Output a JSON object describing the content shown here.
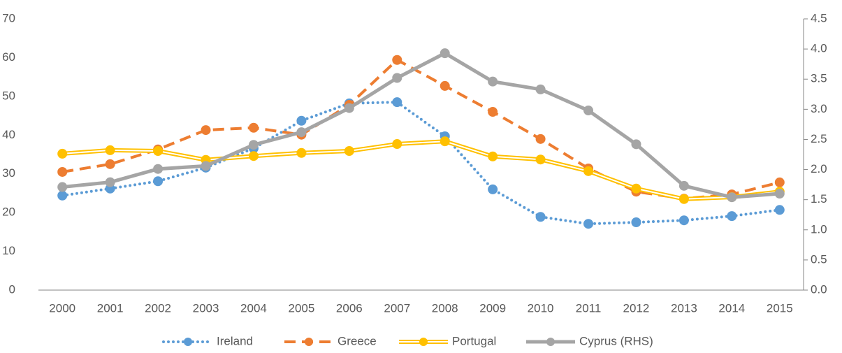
{
  "chart_data": {
    "type": "line",
    "categories": [
      "2000",
      "2001",
      "2002",
      "2003",
      "2004",
      "2005",
      "2006",
      "2007",
      "2008",
      "2009",
      "2010",
      "2011",
      "2012",
      "2013",
      "2014",
      "2015"
    ],
    "series": [
      {
        "name": "Ireland",
        "color": "#5b9bd5",
        "style": "dotted",
        "values": [
          24.4,
          26.2,
          28.1,
          31.6,
          36.6,
          43.7,
          48.2,
          48.5,
          39.7,
          26.0,
          18.9,
          17.1,
          17.5,
          18.0,
          19.1,
          20.7
        ]
      },
      {
        "name": "Greece",
        "color": "#ed7d31",
        "style": "dashed",
        "values": [
          30.5,
          32.5,
          36.3,
          41.3,
          41.9,
          40.1,
          47.8,
          59.4,
          52.7,
          46.0,
          39.0,
          31.4,
          25.4,
          23.6,
          24.7,
          27.8
        ]
      },
      {
        "name": "Portugal",
        "color": "#ffc000",
        "style": "double",
        "values": [
          35.2,
          36.1,
          35.9,
          33.6,
          34.6,
          35.4,
          35.9,
          37.7,
          38.4,
          34.5,
          33.7,
          30.7,
          26.2,
          23.5,
          24.0,
          25.4
        ]
      },
      {
        "name": "Cyprus (RHS)",
        "color": "#a5a5a5",
        "style": "solid",
        "axis": "y2",
        "values": [
          1.71,
          1.79,
          2.01,
          2.06,
          2.41,
          2.62,
          3.02,
          3.52,
          3.93,
          3.46,
          3.33,
          2.98,
          2.42,
          1.73,
          1.54,
          1.6
        ]
      }
    ],
    "ylim": [
      0,
      70
    ],
    "yticks": [
      0,
      10,
      20,
      30,
      40,
      50,
      60,
      70
    ],
    "y2lim": [
      0,
      4.5
    ],
    "y2ticks": [
      {
        "value": 0,
        "label": "0.0"
      },
      0.5,
      {
        "value": 1,
        "label": "1.0"
      },
      1.5,
      {
        "value": 2,
        "label": "2.0"
      },
      2.5,
      {
        "value": 3,
        "label": "3.0"
      },
      3.5,
      {
        "value": 4,
        "label": "4.0"
      },
      4.5
    ],
    "grid": false,
    "legend": "bottom"
  }
}
